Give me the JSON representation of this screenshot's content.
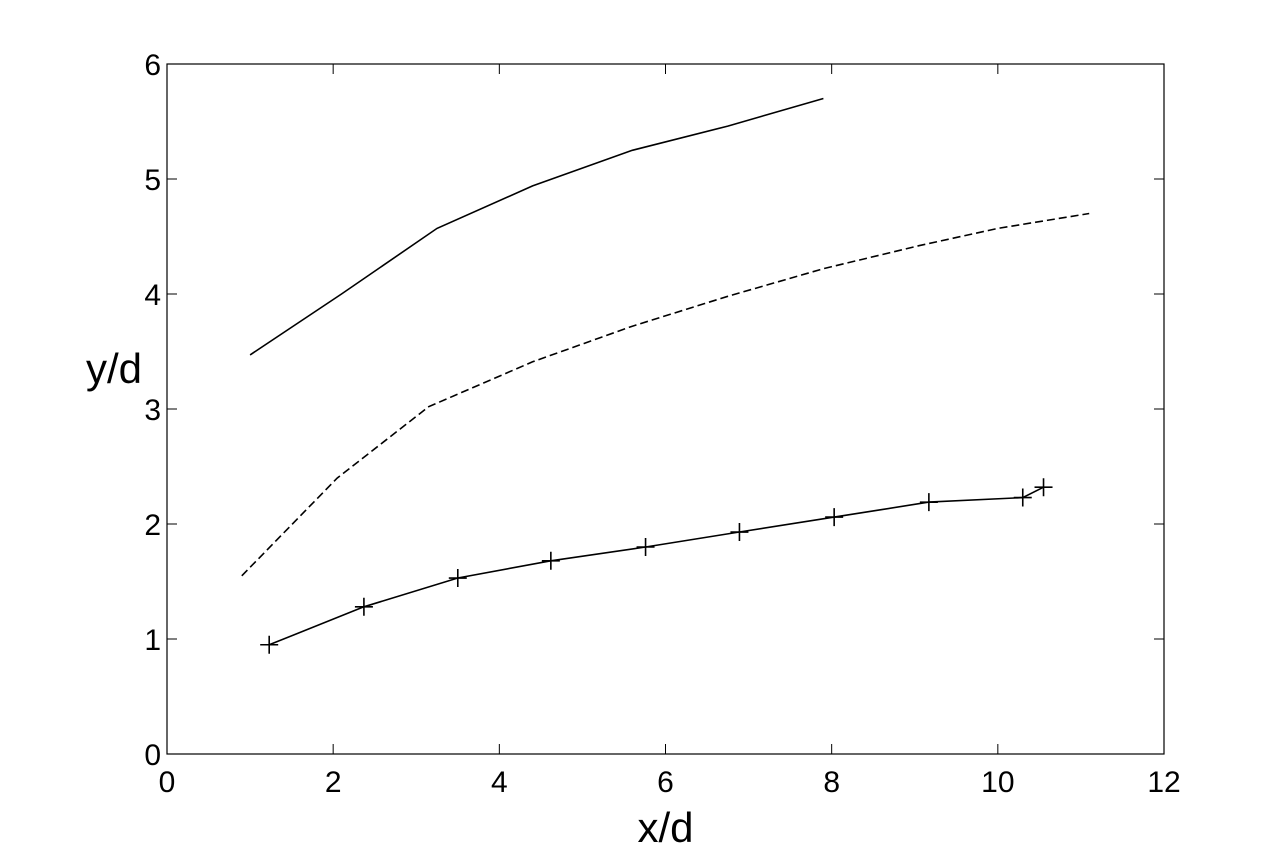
{
  "chart_data": {
    "type": "line",
    "title": "",
    "xlabel": "x/d",
    "ylabel": "y/d",
    "xlim": [
      0,
      12
    ],
    "ylim": [
      0,
      6
    ],
    "xticks": [
      0,
      2,
      4,
      6,
      8,
      10,
      12
    ],
    "yticks": [
      0,
      1,
      2,
      3,
      4,
      5,
      6
    ],
    "xtick_labels": [
      "0",
      "2",
      "4",
      "6",
      "8",
      "10",
      "12"
    ],
    "ytick_labels": [
      "0",
      "1",
      "2",
      "3",
      "4",
      "5",
      "6"
    ],
    "grid": false,
    "legend": "none",
    "series": [
      {
        "style": "solid",
        "marker": "none",
        "color": "#000000",
        "x": [
          1.0,
          2.1,
          3.25,
          4.4,
          5.6,
          6.75,
          7.9
        ],
        "y": [
          3.47,
          4.0,
          4.57,
          4.94,
          5.25,
          5.46,
          5.7
        ]
      },
      {
        "style": "dashed",
        "marker": "none",
        "color": "#000000",
        "x": [
          0.9,
          2.05,
          3.15,
          4.4,
          5.6,
          6.75,
          7.9,
          9.05,
          10.0,
          11.1
        ],
        "y": [
          1.55,
          2.4,
          3.02,
          3.41,
          3.72,
          3.98,
          4.22,
          4.42,
          4.57,
          4.7
        ]
      },
      {
        "style": "solid",
        "marker": "plus",
        "color": "#000000",
        "x": [
          1.23,
          2.37,
          3.5,
          4.62,
          5.76,
          6.89,
          8.03,
          9.17,
          10.3,
          10.55
        ],
        "y": [
          0.95,
          1.28,
          1.53,
          1.68,
          1.8,
          1.93,
          2.06,
          2.19,
          2.23,
          2.32
        ]
      }
    ]
  }
}
